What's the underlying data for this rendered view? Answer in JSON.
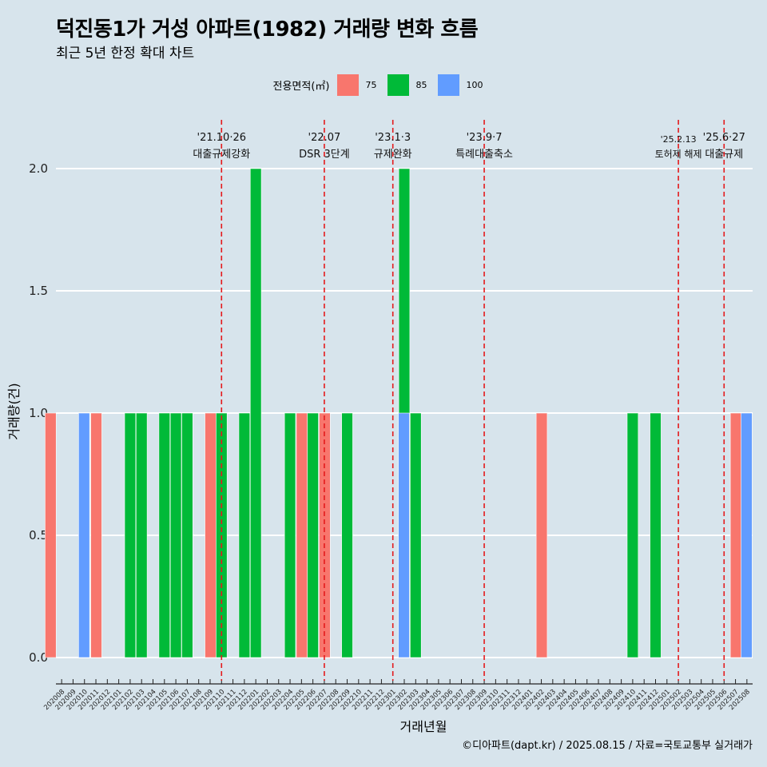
{
  "title": "덕진동1가 거성 아파트(1982) 거래량 변화 흐름",
  "subtitle": "최근 5년 한정 확대 차트",
  "caption": "©디아파트(dapt.kr) / 2025.08.15 / 자료=국토교통부 실거래가",
  "colors": {
    "background": "#d7e4ec",
    "grid": "#ffffff",
    "event_line": "#e41a1c"
  },
  "chart_data": {
    "type": "bar",
    "xlabel": "거래년월",
    "ylabel": "거래량(건)",
    "ylim": [
      0,
      2
    ],
    "yticks": [
      "0.0",
      "0.5",
      "1.0",
      "1.5",
      "2.0"
    ],
    "legend": {
      "title": "전용면적(㎡)",
      "placement": "top"
    },
    "categories": [
      "202008",
      "202009",
      "202010",
      "202011",
      "202012",
      "202101",
      "202102",
      "202103",
      "202104",
      "202105",
      "202106",
      "202107",
      "202108",
      "202109",
      "202110",
      "202111",
      "202112",
      "202201",
      "202202",
      "202203",
      "202204",
      "202205",
      "202206",
      "202207",
      "202208",
      "202209",
      "202210",
      "202211",
      "202212",
      "202301",
      "202302",
      "202303",
      "202304",
      "202305",
      "202306",
      "202307",
      "202308",
      "202309",
      "202310",
      "202311",
      "202312",
      "202401",
      "202402",
      "202403",
      "202404",
      "202405",
      "202406",
      "202407",
      "202408",
      "202409",
      "202410",
      "202411",
      "202412",
      "202501",
      "202502",
      "202503",
      "202504",
      "202505",
      "202506",
      "202507",
      "202508"
    ],
    "series": [
      {
        "name": "75",
        "color": "#f8766d",
        "values": [
          1,
          0,
          0,
          0,
          1,
          0,
          0,
          0,
          0,
          0,
          0,
          0,
          0,
          0,
          1,
          0,
          0,
          0,
          0,
          0,
          0,
          0,
          1,
          0,
          1,
          0,
          0,
          0,
          0,
          0,
          0,
          0,
          0,
          0,
          0,
          0,
          0,
          0,
          0,
          0,
          0,
          0,
          0,
          1,
          0,
          0,
          0,
          0,
          0,
          0,
          0,
          0,
          0,
          0,
          0,
          0,
          0,
          0,
          0,
          0,
          1
        ]
      },
      {
        "name": "85",
        "color": "#00ba38",
        "values": [
          0,
          0,
          1,
          0,
          0,
          0,
          1,
          1,
          0,
          1,
          1,
          1,
          0,
          0,
          1,
          0,
          1,
          2,
          0,
          0,
          1,
          0,
          1,
          0,
          0,
          1,
          0,
          0,
          0,
          0,
          2,
          1,
          0,
          0,
          0,
          0,
          0,
          0,
          0,
          0,
          0,
          0,
          0,
          0,
          0,
          0,
          0,
          0,
          0,
          0,
          1,
          0,
          1,
          0,
          0,
          0,
          0,
          0,
          0,
          0,
          0
        ]
      },
      {
        "name": "100",
        "color": "#619cff",
        "values": [
          0,
          1,
          0,
          0,
          0,
          0,
          0,
          0,
          0,
          0,
          0,
          0,
          0,
          0,
          0,
          0,
          0,
          0,
          0,
          0,
          0,
          0,
          0,
          0,
          0,
          0,
          0,
          0,
          0,
          1,
          0,
          0,
          0,
          0,
          0,
          0,
          0,
          0,
          0,
          0,
          0,
          0,
          0,
          0,
          0,
          0,
          0,
          0,
          0,
          0,
          0,
          0,
          0,
          0,
          0,
          0,
          0,
          0,
          0,
          1,
          0
        ]
      }
    ],
    "events": [
      {
        "at": "202110",
        "date": "'21.10·26",
        "label": "대출규제강화"
      },
      {
        "at": "202207",
        "date": "'22.07",
        "label": "DSR 3단계"
      },
      {
        "at": "202301",
        "date": "'23.1·3",
        "label": "규제완화"
      },
      {
        "at": "202309",
        "date": "'23.9·7",
        "label": "특례대출축소"
      },
      {
        "at": "202502",
        "date": "'25.2.13",
        "label": "토허제 해제"
      },
      {
        "at": "202506",
        "date": "'25.6·27",
        "label": "대출규제"
      }
    ]
  }
}
